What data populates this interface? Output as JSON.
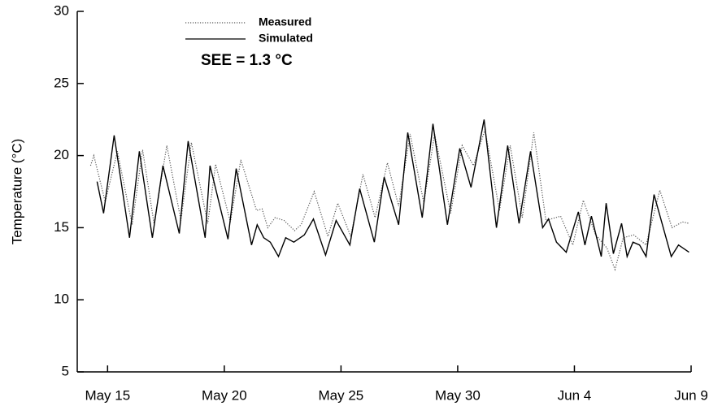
{
  "chart_data": {
    "type": "line",
    "y_label": "Temperature (°C)",
    "annotation": "SEE = 1.3 °C",
    "xlim": [
      -1.3,
      25
    ],
    "ylim": [
      5,
      30
    ],
    "yticks": [
      5,
      10,
      15,
      20,
      25,
      30
    ],
    "xticks": [
      {
        "value": 0,
        "label": "May 15"
      },
      {
        "value": 5,
        "label": "May 20"
      },
      {
        "value": 10,
        "label": "May 25"
      },
      {
        "value": 15,
        "label": "May 30"
      },
      {
        "value": 20,
        "label": "Jun 4"
      },
      {
        "value": 25,
        "label": "Jun 9"
      }
    ],
    "series": [
      {
        "name": "Measured",
        "color": "#555555",
        "dash": "dotted",
        "x": [
          -0.73,
          -0.59,
          -0.1,
          0.42,
          1.05,
          1.5,
          1.99,
          2.54,
          3.14,
          3.59,
          4.29,
          4.63,
          5.26,
          5.71,
          6.38,
          6.62,
          6.86,
          7.18,
          7.56,
          8.01,
          8.29,
          8.85,
          9.44,
          9.86,
          10.42,
          10.94,
          11.46,
          11.99,
          12.47,
          12.96,
          13.55,
          14.01,
          14.7,
          15.19,
          15.68,
          16.17,
          16.79,
          17.25,
          17.77,
          18.26,
          18.78,
          19.41,
          19.93,
          20.38,
          20.91,
          21.39,
          21.74,
          22.09,
          22.54,
          23.07,
          23.66,
          24.18,
          24.63,
          24.91
        ],
        "values": [
          19.3,
          20,
          16.8,
          20.3,
          15.2,
          20.4,
          15.3,
          20.7,
          15.5,
          20.9,
          15.3,
          19.4,
          15.4,
          19.7,
          16.2,
          16.3,
          15.0,
          15.7,
          15.5,
          14.8,
          15.2,
          17.5,
          14.4,
          16.7,
          14.4,
          18.7,
          15.7,
          19.5,
          16.5,
          21.5,
          16.7,
          21.5,
          16.0,
          20.7,
          19.3,
          21.8,
          16.2,
          20.7,
          15.7,
          21.6,
          15.5,
          15.8,
          13.8,
          16.9,
          14.5,
          13.6,
          12.1,
          14.3,
          14.5,
          13.8,
          17.6,
          15,
          15.4,
          15.3
        ]
      },
      {
        "name": "Simulated",
        "color": "#000000",
        "dash": "solid",
        "x": [
          -0.45,
          -0.17,
          0.28,
          0.94,
          1.36,
          1.92,
          2.37,
          3.07,
          3.45,
          4.18,
          4.39,
          5.16,
          5.51,
          6.17,
          6.41,
          6.69,
          6.97,
          7.32,
          7.63,
          7.98,
          8.43,
          8.82,
          9.34,
          9.79,
          10.38,
          10.8,
          11.43,
          11.85,
          12.47,
          12.86,
          13.48,
          13.94,
          14.56,
          15.09,
          15.57,
          16.13,
          16.66,
          17.14,
          17.63,
          18.12,
          18.64,
          18.89,
          19.23,
          19.65,
          20.17,
          20.45,
          20.73,
          21.15,
          21.36,
          21.67,
          22.02,
          22.26,
          22.51,
          22.79,
          23.07,
          23.41,
          24.15,
          24.46,
          24.91
        ],
        "values": [
          18.2,
          16,
          21.4,
          14.3,
          20.3,
          14.3,
          19.3,
          14.6,
          21,
          14.3,
          19.3,
          14.2,
          19.1,
          13.8,
          15.2,
          14.3,
          14.0,
          13,
          14.3,
          14.0,
          14.5,
          15.6,
          13.1,
          15.5,
          13.8,
          17.7,
          14,
          18.5,
          15.2,
          21.6,
          15.7,
          22.2,
          15.2,
          20.5,
          17.8,
          22.5,
          15,
          20.7,
          15.3,
          20.3,
          15,
          15.6,
          14.0,
          13.3,
          16.1,
          13.8,
          15.8,
          13.0,
          16.7,
          13.2,
          15.3,
          13.0,
          14,
          13.8,
          13.0,
          17.3,
          13,
          13.8,
          13.3
        ]
      }
    ]
  }
}
